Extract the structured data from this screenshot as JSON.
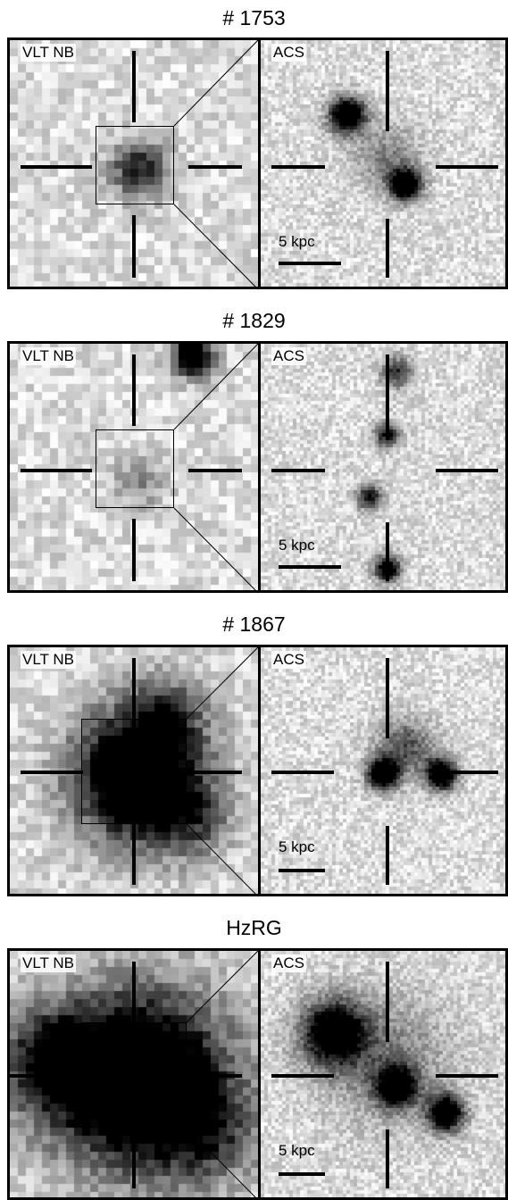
{
  "rows": [
    {
      "title": "# 1753",
      "left_label": "VLT NB",
      "right_label": "ACS",
      "scale_label": "5 kpc"
    },
    {
      "title": "# 1829",
      "left_label": "VLT NB",
      "right_label": "ACS",
      "scale_label": "5 kpc"
    },
    {
      "title": "# 1867",
      "left_label": "VLT NB",
      "right_label": "ACS",
      "scale_label": "5 kpc"
    },
    {
      "title": "HzRG",
      "left_label": "VLT NB",
      "right_label": "ACS",
      "scale_label": "5 kpc"
    }
  ]
}
